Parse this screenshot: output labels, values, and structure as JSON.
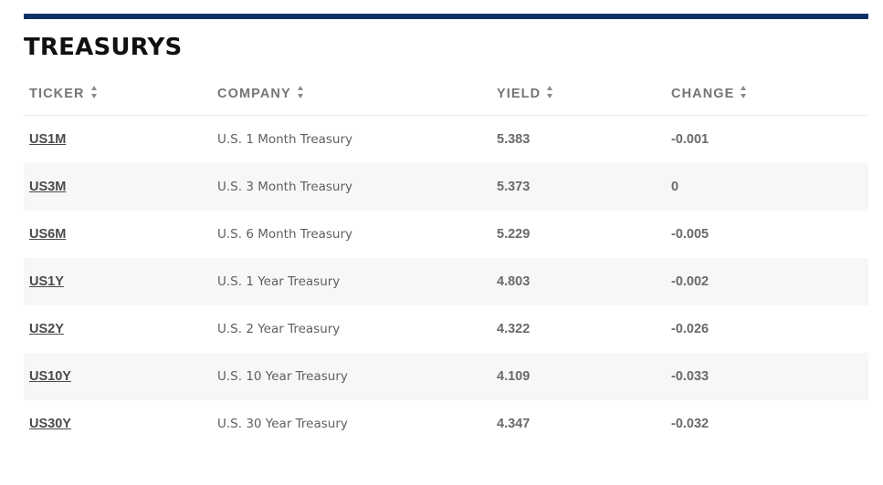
{
  "section": {
    "title": "TREASURYS"
  },
  "table": {
    "columns": [
      "TICKER",
      "COMPANY",
      "YIELD",
      "CHANGE"
    ],
    "rows": [
      {
        "ticker": "US1M",
        "company": "U.S. 1 Month Treasury",
        "yield": "5.383",
        "change": "-0.001"
      },
      {
        "ticker": "US3M",
        "company": "U.S. 3 Month Treasury",
        "yield": "5.373",
        "change": "0"
      },
      {
        "ticker": "US6M",
        "company": "U.S. 6 Month Treasury",
        "yield": "5.229",
        "change": "-0.005"
      },
      {
        "ticker": "US1Y",
        "company": "U.S. 1 Year Treasury",
        "yield": "4.803",
        "change": "-0.002"
      },
      {
        "ticker": "US2Y",
        "company": "U.S. 2 Year Treasury",
        "yield": "4.322",
        "change": "-0.026"
      },
      {
        "ticker": "US10Y",
        "company": "U.S. 10 Year Treasury",
        "yield": "4.109",
        "change": "-0.033"
      },
      {
        "ticker": "US30Y",
        "company": "U.S. 30 Year Treasury",
        "yield": "4.347",
        "change": "-0.032"
      }
    ]
  },
  "colors": {
    "accent_rule": "#0b3168",
    "row_alt_bg": "#f7f7f7",
    "header_text": "#757575"
  },
  "icons": {
    "sort": "sort-arrows-icon"
  }
}
